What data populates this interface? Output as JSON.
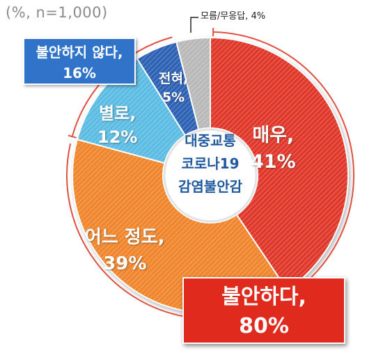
{
  "note": "(%, n=1,000)",
  "center_lines": [
    "대중교통",
    "코로나19",
    "감염불안감"
  ],
  "group_labels": {
    "not_anxious": [
      "불안하지 않다,",
      "16%"
    ],
    "anxious": [
      "불안하다,",
      "80%"
    ]
  },
  "colors": {
    "very": "#e0392b",
    "somewhat": "#f0862e",
    "rarely": "#5bbce3",
    "never": "#2d62b4",
    "unsure": "#b9b9b9",
    "center_text": "#1f5aa0",
    "anxious_box": "#e02a1e",
    "not_anxious_box": "#2f74c8"
  },
  "chart_data": {
    "type": "pie",
    "unit": "%",
    "n": 1000,
    "slices": [
      {
        "key": "very",
        "name": "매우,",
        "value": 41,
        "value_label": "41%"
      },
      {
        "key": "somewhat",
        "name": "어느 정도,",
        "value": 39,
        "value_label": "39%"
      },
      {
        "key": "rarely",
        "name": "별로,",
        "value": 12,
        "value_label": "12%"
      },
      {
        "key": "never",
        "name": "전혀,",
        "value": 5,
        "value_label": "5%"
      },
      {
        "key": "unsure",
        "name": "모름/무응답,",
        "value": 4,
        "value_label": "4%"
      }
    ]
  }
}
